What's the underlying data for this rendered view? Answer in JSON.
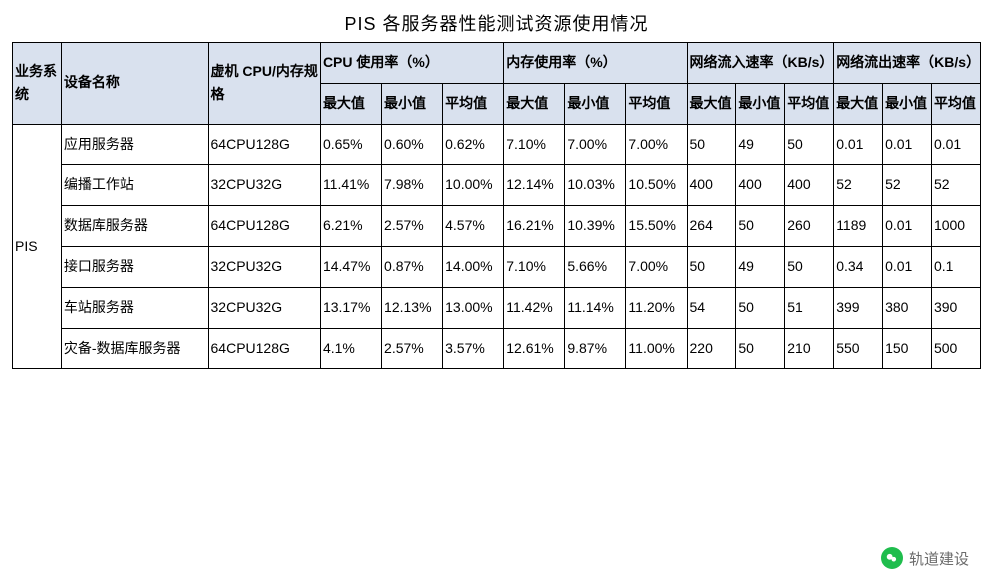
{
  "title": "PIS 各服务器性能测试资源使用情况",
  "table": {
    "header_top": {
      "system": "业务系统",
      "device": "设备名称",
      "spec": "虚机 CPU/内存规格",
      "cpu": "CPU 使用率（%）",
      "mem": "内存使用率（%）",
      "net_in": "网络流入速率（KB/s）",
      "net_out": "网络流出速率（KB/s）"
    },
    "header_sub": {
      "max": "最大值",
      "min": "最小值",
      "avg": "平均值"
    },
    "system_label": "PIS",
    "rows": [
      {
        "device": "应用服务器",
        "spec": "64CPU128G",
        "cpu": {
          "max": "0.65%",
          "min": "0.60%",
          "avg": "0.62%"
        },
        "mem": {
          "max": "7.10%",
          "min": "7.00%",
          "avg": "7.00%"
        },
        "nin": {
          "max": "50",
          "min": "49",
          "avg": "50"
        },
        "nout": {
          "max": "0.01",
          "min": "0.01",
          "avg": "0.01"
        }
      },
      {
        "device": "编播工作站",
        "spec": "32CPU32G",
        "cpu": {
          "max": "11.41%",
          "min": "7.98%",
          "avg": "10.00%"
        },
        "mem": {
          "max": "12.14%",
          "min": "10.03%",
          "avg": "10.50%"
        },
        "nin": {
          "max": "400",
          "min": "400",
          "avg": "400"
        },
        "nout": {
          "max": "52",
          "min": "52",
          "avg": "52"
        }
      },
      {
        "device": "数据库服务器",
        "spec": "64CPU128G",
        "cpu": {
          "max": "6.21%",
          "min": "2.57%",
          "avg": "4.57%"
        },
        "mem": {
          "max": "16.21%",
          "min": "10.39%",
          "avg": "15.50%"
        },
        "nin": {
          "max": "264",
          "min": "50",
          "avg": "260"
        },
        "nout": {
          "max": "1189",
          "min": "0.01",
          "avg": "1000"
        }
      },
      {
        "device": "接口服务器",
        "spec": "32CPU32G",
        "cpu": {
          "max": "14.47%",
          "min": "0.87%",
          "avg": "14.00%"
        },
        "mem": {
          "max": "7.10%",
          "min": "5.66%",
          "avg": "7.00%"
        },
        "nin": {
          "max": "50",
          "min": "49",
          "avg": "50"
        },
        "nout": {
          "max": "0.34",
          "min": "0.01",
          "avg": "0.1"
        }
      },
      {
        "device": "车站服务器",
        "spec": "32CPU32G",
        "cpu": {
          "max": "13.17%",
          "min": "12.13%",
          "avg": "13.00%"
        },
        "mem": {
          "max": "11.42%",
          "min": "11.14%",
          "avg": "11.20%"
        },
        "nin": {
          "max": "54",
          "min": "50",
          "avg": "51"
        },
        "nout": {
          "max": "399",
          "min": "380",
          "avg": "390"
        }
      },
      {
        "device": "灾备-数据库服务器",
        "spec": "64CPU128G",
        "cpu": {
          "max": "4.1%",
          "min": "2.57%",
          "avg": "3.57%"
        },
        "mem": {
          "max": "12.61%",
          "min": "9.87%",
          "avg": "11.00%"
        },
        "nin": {
          "max": "220",
          "min": "50",
          "avg": "210"
        },
        "nout": {
          "max": "550",
          "min": "150",
          "avg": "500"
        }
      }
    ]
  },
  "footer": {
    "label": "轨道建设",
    "icon": "wechat-icon",
    "icon_color": "#1fbd4d"
  },
  "style": {
    "header_bg": "#d9e1ee",
    "border_color": "#000000",
    "title_fontsize": 18,
    "cell_fontsize": 14
  }
}
